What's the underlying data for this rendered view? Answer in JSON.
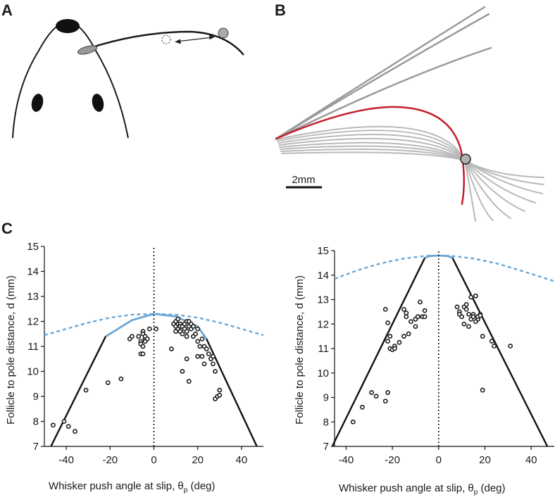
{
  "panels": {
    "a": {
      "letter": "A"
    },
    "b": {
      "letter": "B",
      "scale_bar_label": "2mm"
    },
    "c": {
      "letter": "C"
    }
  },
  "chart_data": [
    {
      "type": "scatter",
      "title": "",
      "xlabel": "Whisker push angle at slip, θ",
      "xlabel_sub": "p",
      "xlabel_unit": " (deg)",
      "ylabel": "Follicle to pole distance, d (mm)",
      "xlim": [
        -50,
        50
      ],
      "ylim": [
        7,
        15
      ],
      "xticks": [
        -40,
        -20,
        0,
        20,
        40
      ],
      "yticks": [
        7,
        8,
        9,
        10,
        11,
        12,
        13,
        14,
        15
      ],
      "x": [
        -46,
        -41,
        -39,
        -36,
        -31,
        -21,
        -15,
        -11,
        -10,
        -7,
        -6,
        -6,
        -6,
        -5,
        -5,
        -5,
        -5,
        -4,
        -4,
        -4,
        -3,
        -2,
        1,
        9,
        10,
        10,
        11,
        11,
        11,
        12,
        12,
        12,
        13,
        13,
        14,
        14,
        15,
        15,
        15,
        16,
        16,
        17,
        17,
        18,
        18,
        19,
        20,
        20,
        20,
        21,
        22,
        22,
        23,
        23,
        24,
        25,
        26,
        27,
        27,
        28,
        28,
        29,
        30,
        30,
        15,
        16,
        8,
        10,
        13
      ],
      "y": [
        7.85,
        8.0,
        7.8,
        7.6,
        9.25,
        9.55,
        9.7,
        11.3,
        11.4,
        11.4,
        10.7,
        11.2,
        11.1,
        11.6,
        11.5,
        11.0,
        10.7,
        11.3,
        11.4,
        11.2,
        11.3,
        11.7,
        11.7,
        11.9,
        11.8,
        12.0,
        11.9,
        11.7,
        12.1,
        11.6,
        11.9,
        11.8,
        11.5,
        11.8,
        11.7,
        11.9,
        12.0,
        11.6,
        11.4,
        11.8,
        12.0,
        11.7,
        11.9,
        11.4,
        11.8,
        11.5,
        11.2,
        11.7,
        10.6,
        11.0,
        11.3,
        10.6,
        10.3,
        11.0,
        10.9,
        10.7,
        10.5,
        10.3,
        10.6,
        10.0,
        8.9,
        9.0,
        9.05,
        9.25,
        10.5,
        9.6,
        10.9,
        11.6,
        10.0
      ],
      "boundary_lines": [
        {
          "style": "solid",
          "x": [
            -47,
            -22,
            -10,
            0,
            10,
            20,
            24,
            47
          ],
          "y": [
            7.0,
            11.4,
            12.05,
            12.3,
            12.2,
            11.8,
            11.3,
            7.0
          ]
        },
        {
          "style": "dashed",
          "x": [
            -50,
            -40,
            -30,
            -20,
            -10,
            0,
            10,
            20,
            30,
            40,
            50
          ],
          "y": [
            11.45,
            11.7,
            11.95,
            12.15,
            12.27,
            12.3,
            12.27,
            12.15,
            11.95,
            11.7,
            11.45
          ]
        },
        {
          "style": "dotted",
          "x": [
            0,
            0
          ],
          "y": [
            7,
            15
          ]
        }
      ],
      "colors": {
        "points": "#1a1a1a",
        "bound": "#111111",
        "fit": "#6aa8d8"
      }
    },
    {
      "type": "scatter",
      "title": "",
      "xlabel": "Whisker push angle at slip, θ",
      "xlabel_sub": "p",
      "xlabel_unit": " (deg)",
      "ylabel": "Follicle to pole distance, d (mm)",
      "xlim": [
        -45,
        50
      ],
      "ylim": [
        7,
        15
      ],
      "xticks": [
        -40,
        -20,
        0,
        20,
        40
      ],
      "yticks": [
        7,
        8,
        9,
        10,
        11,
        12,
        13,
        14,
        15
      ],
      "x": [
        -37,
        -33,
        -29,
        -27,
        -23,
        -22,
        -22,
        -21,
        -21,
        -20,
        -19,
        -19,
        -17,
        -15,
        -15,
        -14,
        -14,
        -13,
        -12,
        -10,
        -10,
        -9,
        -9,
        -8,
        -7,
        -6,
        -6,
        -23,
        -22,
        8,
        9,
        9,
        10,
        11,
        11,
        12,
        12,
        13,
        13,
        14,
        14,
        15,
        15,
        16,
        16,
        17,
        17,
        18,
        18,
        19,
        23,
        24,
        31,
        19
      ],
      "y": [
        8.0,
        8.6,
        9.2,
        9.05,
        8.85,
        11.3,
        12.05,
        11.5,
        11.0,
        10.95,
        11.1,
        11.0,
        11.25,
        11.5,
        12.6,
        12.3,
        12.45,
        11.6,
        12.1,
        12.2,
        11.9,
        12.3,
        12.3,
        12.9,
        12.3,
        12.55,
        12.3,
        12.6,
        9.2,
        12.7,
        12.5,
        12.4,
        12.3,
        12.7,
        12.0,
        12.8,
        12.6,
        11.9,
        12.4,
        13.1,
        12.2,
        12.4,
        12.3,
        13.15,
        12.1,
        12.2,
        12.3,
        12.4,
        12.35,
        11.5,
        11.3,
        11.1,
        11.1,
        9.3
      ],
      "boundary_lines": [
        {
          "style": "solid",
          "x": [
            -46,
            -6,
            -4,
            0,
            4,
            6,
            47
          ],
          "y": [
            7.0,
            14.7,
            14.78,
            14.8,
            14.78,
            14.7,
            7.0
          ]
        },
        {
          "style": "dashed",
          "x": [
            -45,
            -35,
            -25,
            -15,
            -5,
            0,
            5,
            15,
            25,
            35,
            50
          ],
          "y": [
            13.85,
            14.2,
            14.48,
            14.68,
            14.79,
            14.8,
            14.79,
            14.68,
            14.48,
            14.2,
            13.75
          ]
        },
        {
          "style": "dotted",
          "x": [
            0,
            0
          ],
          "y": [
            7,
            15
          ]
        }
      ],
      "colors": {
        "points": "#1a1a1a",
        "bound": "#111111",
        "fit": "#6aa8d8"
      }
    }
  ]
}
